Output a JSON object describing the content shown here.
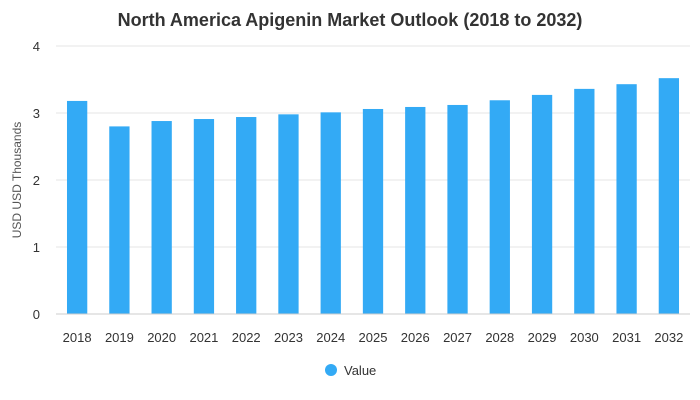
{
  "chart_data": {
    "type": "bar",
    "title": "North America Apigenin Market Outlook (2018 to 2032)",
    "xlabel": "",
    "ylabel": "USD USD Thousands",
    "categories": [
      "2018",
      "2019",
      "2020",
      "2021",
      "2022",
      "2023",
      "2024",
      "2025",
      "2026",
      "2027",
      "2028",
      "2029",
      "2030",
      "2031",
      "2032"
    ],
    "series": [
      {
        "name": "Value",
        "color": "#33aaf5",
        "values": [
          3.18,
          2.8,
          2.88,
          2.91,
          2.94,
          2.98,
          3.01,
          3.06,
          3.09,
          3.12,
          3.19,
          3.27,
          3.36,
          3.43,
          3.52
        ]
      }
    ],
    "ylim": [
      0,
      4
    ],
    "yticks": [
      "0",
      "1",
      "2",
      "3",
      "4"
    ],
    "grid": true,
    "legend_position": "bottom-center"
  }
}
